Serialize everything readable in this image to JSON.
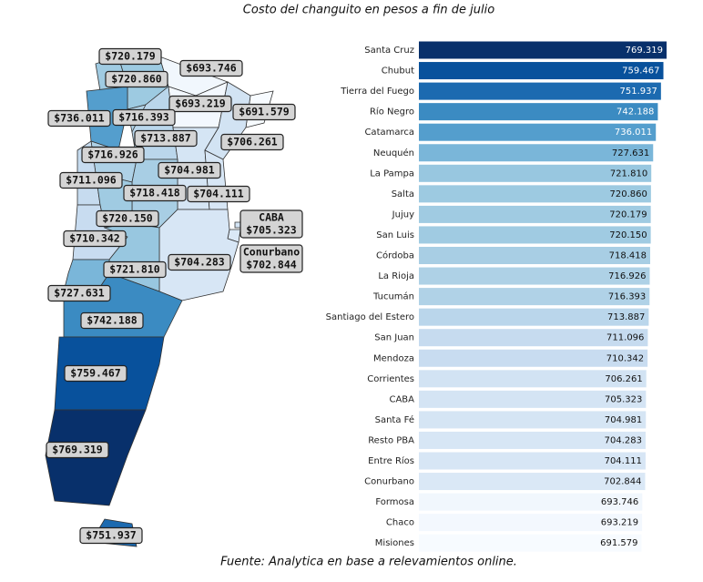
{
  "chart_data": [
    {
      "type": "bar",
      "orientation": "horizontal",
      "title": "Costo del changuito en pesos a fin de julio",
      "source": "Fuente: Analytica en base a relevamientos online.",
      "colorscale": [
        "#f7fbff",
        "#deebf7",
        "#c6dbef",
        "#9ecae1",
        "#6baed6",
        "#4292c6",
        "#2171b5",
        "#08519c",
        "#08306b"
      ],
      "categories": [
        "Santa Cruz",
        "Chubut",
        "Tierra del Fuego",
        "Río Negro",
        "Catamarca",
        "Neuquén",
        "La Pampa",
        "Salta",
        "Jujuy",
        "San Luis",
        "Córdoba",
        "La Rioja",
        "Tucumán",
        "Santiago del Estero",
        "San Juan",
        "Mendoza",
        "Corrientes",
        "CABA",
        "Santa Fé",
        "Resto PBA",
        "Entre Ríos",
        "Conurbano",
        "Formosa",
        "Chaco",
        "Misiones"
      ],
      "values": [
        769319,
        759467,
        751937,
        742188,
        736011,
        727631,
        721810,
        720860,
        720179,
        720150,
        718418,
        716926,
        716393,
        713887,
        711096,
        710342,
        706261,
        705323,
        704981,
        704283,
        704111,
        702844,
        693746,
        693219,
        691579
      ],
      "value_labels": [
        "769.319",
        "759.467",
        "751.937",
        "742.188",
        "736.011",
        "727.631",
        "721.810",
        "720.860",
        "720.179",
        "720.150",
        "718.418",
        "716.926",
        "716.393",
        "713.887",
        "711.096",
        "710.342",
        "706.261",
        "705.323",
        "704.981",
        "704.283",
        "704.111",
        "702.844",
        "693.746",
        "693.219",
        "691.579"
      ]
    },
    {
      "type": "map",
      "labels": [
        null,
        null,
        null,
        null,
        null,
        null,
        null,
        null,
        null,
        null,
        null,
        null,
        null,
        null,
        null,
        "CABA",
        null,
        "Conurbano",
        null,
        null,
        null,
        null,
        null,
        null,
        null
      ],
      "values": [
        720179,
        693746,
        720860,
        693219,
        691579,
        736011,
        716393,
        713887,
        706261,
        716926,
        704981,
        711096,
        718418,
        704111,
        720150,
        705323,
        710342,
        702844,
        704283,
        721810,
        727631,
        742188,
        759467,
        769319,
        751937
      ],
      "value_labels": [
        "$720.179",
        "$693.746",
        "$720.860",
        "$693.219",
        "$691.579",
        "$736.011",
        "$716.393",
        "$713.887",
        "$706.261",
        "$716.926",
        "$704.981",
        "$711.096",
        "$718.418",
        "$704.111",
        "$720.150",
        "$705.323",
        "$710.342",
        "$702.844",
        "$704.283",
        "$721.810",
        "$727.631",
        "$742.188",
        "$759.467",
        "$769.319",
        "$751.937"
      ]
    }
  ]
}
